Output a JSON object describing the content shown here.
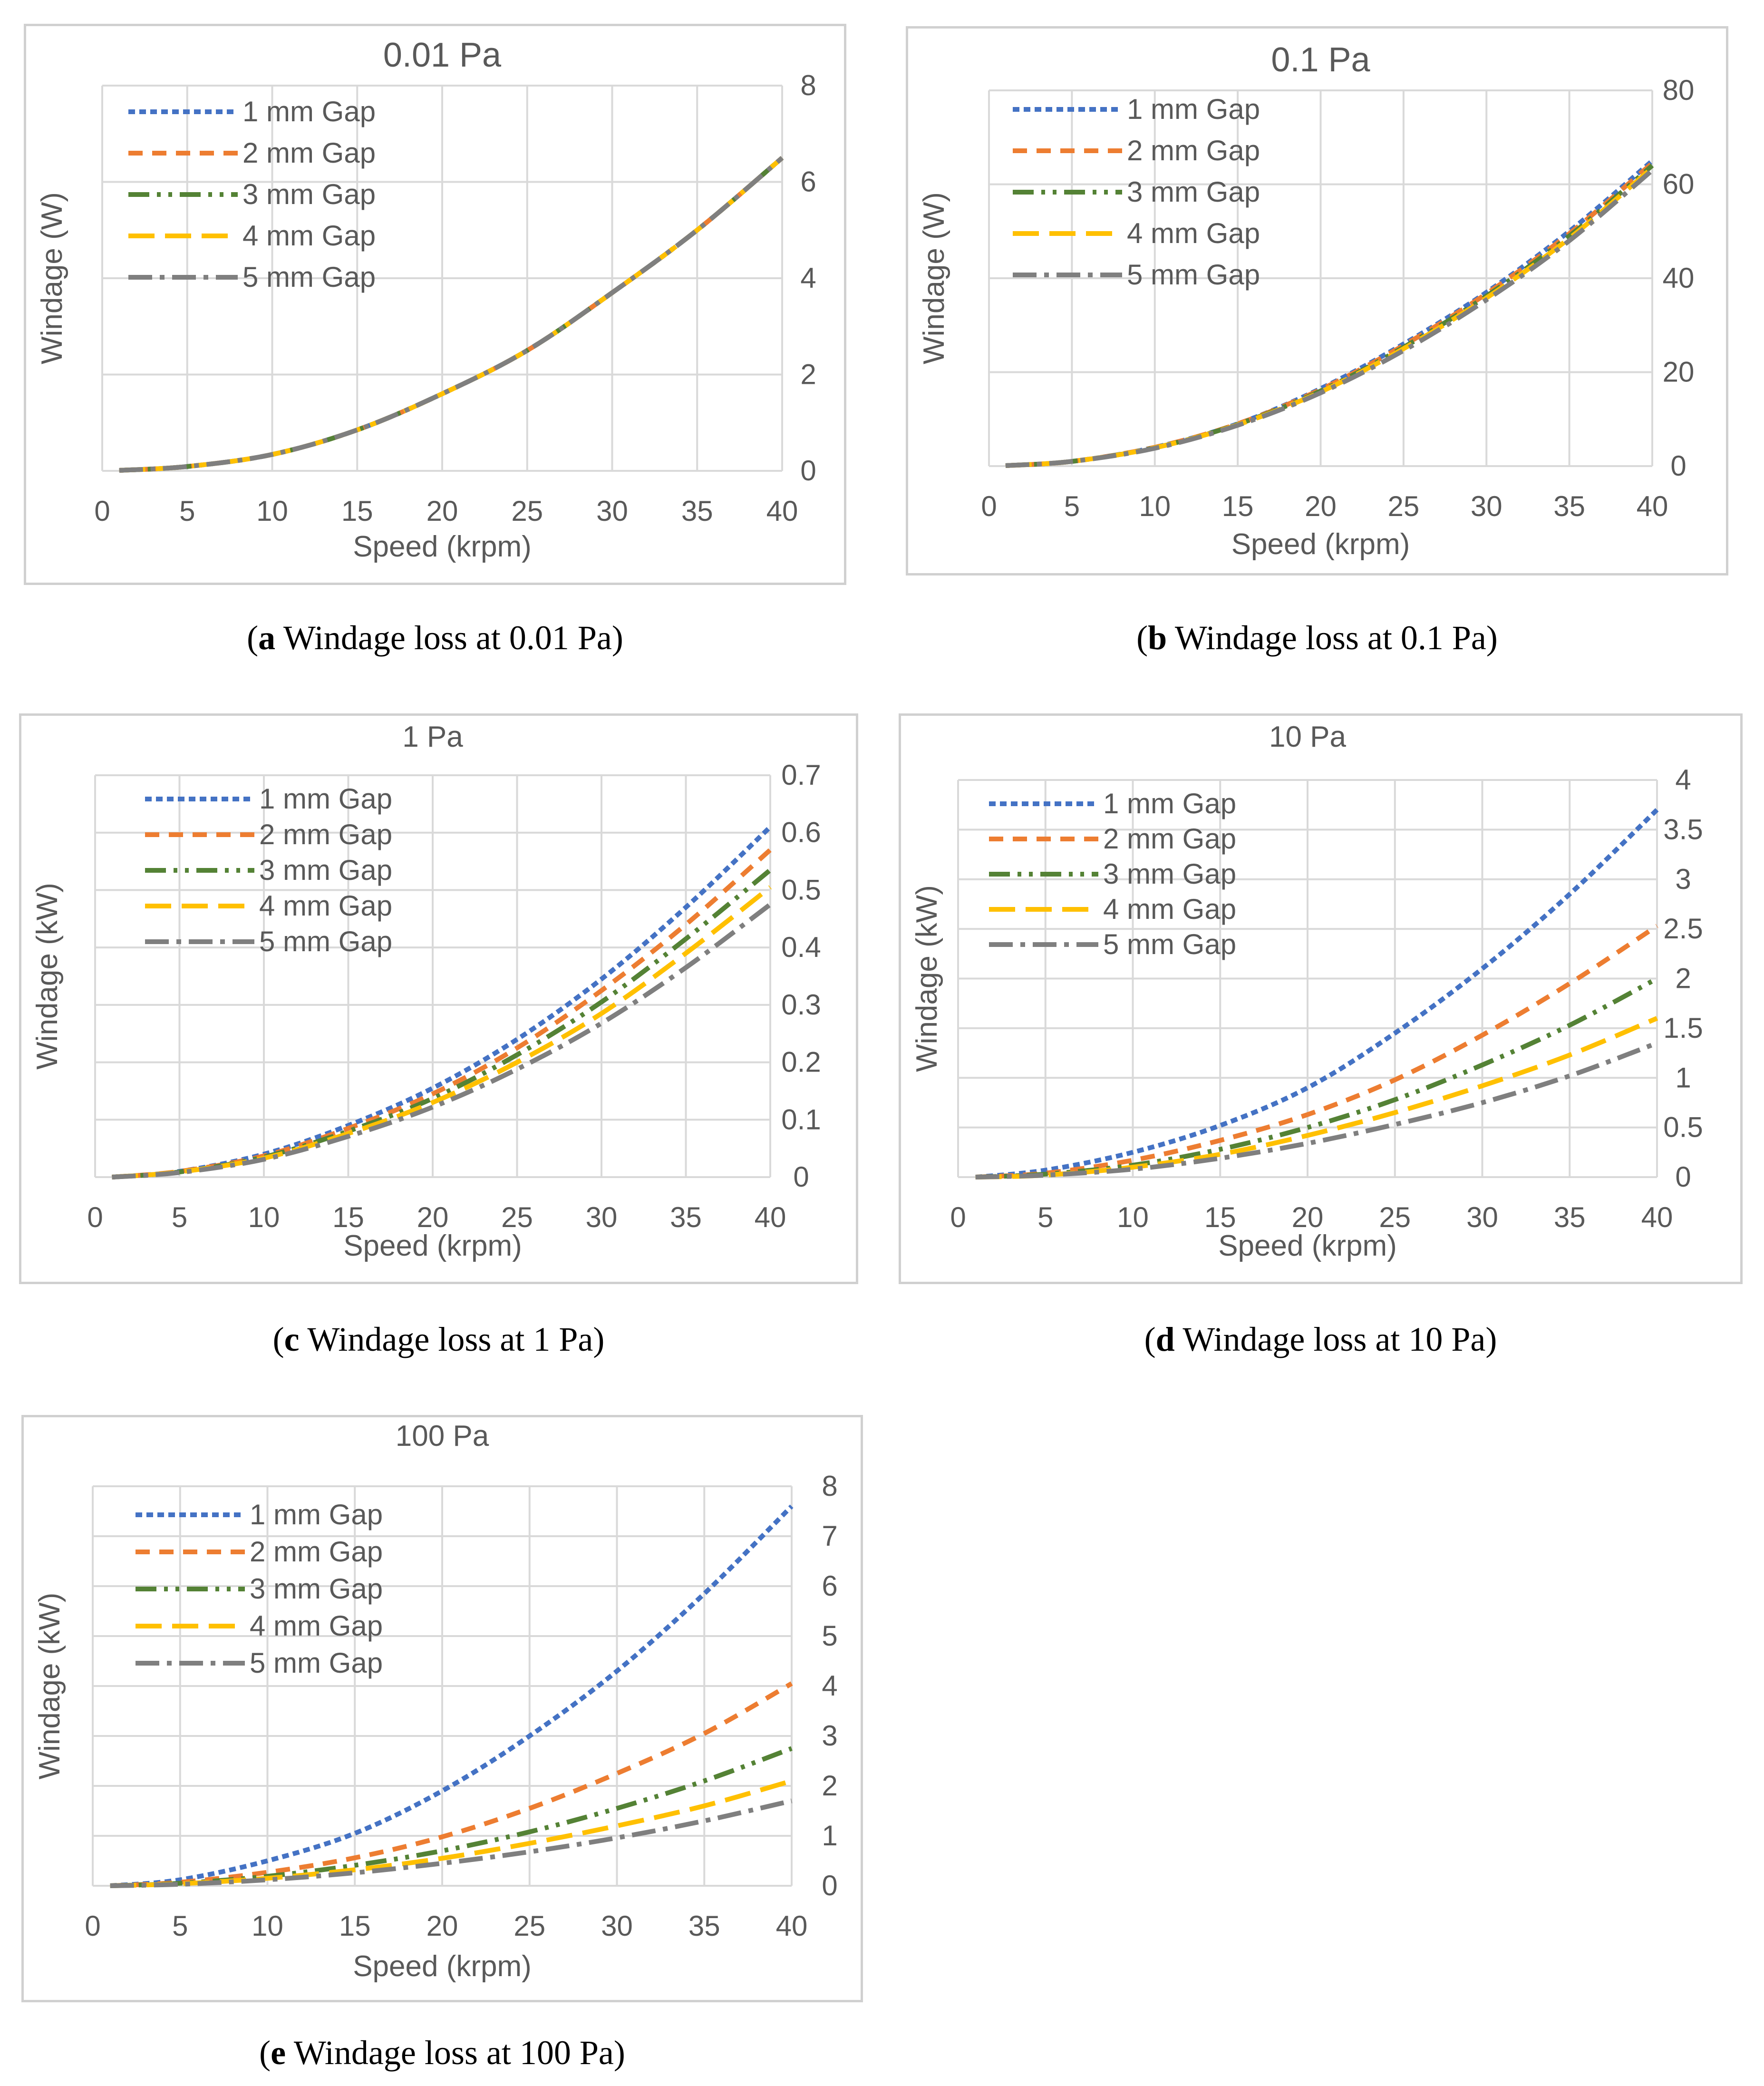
{
  "colors": {
    "gap1": "#4472c4",
    "gap2": "#ed7d31",
    "gap3": "#548235",
    "gap4": "#ffc000",
    "gap5": "#7f7f7f",
    "grid": "#d9d9d9",
    "text": "#595959"
  },
  "captions": [
    {
      "letter": "a",
      "text": " Windage loss at 0.01 Pa"
    },
    {
      "letter": "b",
      "text": " Windage loss at 0.1 Pa"
    },
    {
      "letter": "c",
      "text": " Windage loss at 1 Pa"
    },
    {
      "letter": "d",
      "text": " Windage loss at 10 Pa"
    },
    {
      "letter": "e",
      "text": " Windage loss at 100 Pa"
    }
  ],
  "chart_data": [
    {
      "type": "line",
      "title": "0.01 Pa",
      "xlabel": "Speed (krpm)",
      "ylabel": "Windage (W)",
      "xlim": [
        0,
        40
      ],
      "ylim": [
        0,
        8
      ],
      "xticks": [
        "0",
        "5",
        "10",
        "15",
        "20",
        "25",
        "30",
        "35",
        "40"
      ],
      "yticks": [
        "0",
        "2",
        "4",
        "6",
        "8"
      ],
      "grid": true,
      "legend": "top-left",
      "x": [
        1,
        5,
        10,
        15,
        20,
        25,
        30,
        35,
        40
      ],
      "series": [
        {
          "name": "1 mm Gap",
          "values": [
            0.01,
            0.09,
            0.34,
            0.85,
            1.6,
            2.5,
            3.7,
            5.0,
            6.5
          ]
        },
        {
          "name": "2 mm Gap",
          "values": [
            0.01,
            0.09,
            0.34,
            0.85,
            1.6,
            2.5,
            3.7,
            5.0,
            6.5
          ]
        },
        {
          "name": "3 mm Gap",
          "values": [
            0.01,
            0.09,
            0.34,
            0.85,
            1.6,
            2.5,
            3.7,
            5.0,
            6.5
          ]
        },
        {
          "name": "4 mm Gap",
          "values": [
            0.01,
            0.09,
            0.34,
            0.85,
            1.6,
            2.5,
            3.7,
            5.0,
            6.5
          ]
        },
        {
          "name": "5 mm Gap",
          "values": [
            0.01,
            0.09,
            0.34,
            0.85,
            1.6,
            2.5,
            3.7,
            5.0,
            6.5
          ]
        }
      ]
    },
    {
      "type": "line",
      "title": "0.1 Pa",
      "xlabel": "Speed (krpm)",
      "ylabel": "Windage (W)",
      "xlim": [
        0,
        40
      ],
      "ylim": [
        0,
        80
      ],
      "xticks": [
        "0",
        "5",
        "10",
        "15",
        "20",
        "25",
        "30",
        "35",
        "40"
      ],
      "yticks": [
        "0",
        "20",
        "40",
        "60",
        "80"
      ],
      "grid": true,
      "legend": "top-left",
      "x": [
        1,
        5,
        10,
        15,
        20,
        25,
        30,
        35,
        40
      ],
      "series": [
        {
          "name": "1 mm Gap",
          "values": [
            0.1,
            1.0,
            4.0,
            9.0,
            16.5,
            26.0,
            37.0,
            50.0,
            65.0
          ]
        },
        {
          "name": "2 mm Gap",
          "values": [
            0.1,
            1.0,
            4.0,
            9.0,
            16.3,
            25.7,
            36.7,
            49.5,
            64.5
          ]
        },
        {
          "name": "3 mm Gap",
          "values": [
            0.1,
            1.0,
            3.9,
            8.9,
            16.0,
            25.3,
            36.2,
            49.0,
            64.0
          ]
        },
        {
          "name": "4 mm Gap",
          "values": [
            0.1,
            1.0,
            3.9,
            8.8,
            15.8,
            25.0,
            35.8,
            48.5,
            63.5
          ]
        },
        {
          "name": "5 mm Gap",
          "values": [
            0.1,
            1.0,
            3.8,
            8.7,
            15.6,
            24.6,
            35.4,
            48.0,
            63.0
          ]
        }
      ]
    },
    {
      "type": "line",
      "title": "1 Pa",
      "xlabel": "Speed (krpm)",
      "ylabel": "Windage (kW)",
      "xlim": [
        0,
        40
      ],
      "ylim": [
        0,
        0.7
      ],
      "xticks": [
        "0",
        "5",
        "10",
        "15",
        "20",
        "25",
        "30",
        "35",
        "40"
      ],
      "yticks": [
        "0",
        "0.1",
        "0.2",
        "0.3",
        "0.4",
        "0.5",
        "0.6",
        "0.7"
      ],
      "grid": true,
      "legend": "top-left",
      "x": [
        1,
        5,
        10,
        15,
        20,
        25,
        30,
        35,
        40
      ],
      "series": [
        {
          "name": "1 mm Gap",
          "values": [
            0.0,
            0.01,
            0.04,
            0.09,
            0.155,
            0.24,
            0.345,
            0.47,
            0.61
          ]
        },
        {
          "name": "2 mm Gap",
          "values": [
            0.0,
            0.01,
            0.037,
            0.085,
            0.145,
            0.225,
            0.325,
            0.44,
            0.57
          ]
        },
        {
          "name": "3 mm Gap",
          "values": [
            0.0,
            0.009,
            0.035,
            0.08,
            0.137,
            0.213,
            0.305,
            0.415,
            0.535
          ]
        },
        {
          "name": "4 mm Gap",
          "values": [
            0.0,
            0.009,
            0.033,
            0.076,
            0.13,
            0.2,
            0.285,
            0.39,
            0.505
          ]
        },
        {
          "name": "5 mm Gap",
          "values": [
            0.0,
            0.008,
            0.031,
            0.071,
            0.122,
            0.188,
            0.268,
            0.365,
            0.475
          ]
        }
      ]
    },
    {
      "type": "line",
      "title": "10 Pa",
      "xlabel": "Speed (krpm)",
      "ylabel": "Windage (kW)",
      "xlim": [
        0,
        40
      ],
      "ylim": [
        0,
        4
      ],
      "xticks": [
        "0",
        "5",
        "10",
        "15",
        "20",
        "25",
        "30",
        "35",
        "40"
      ],
      "yticks": [
        "0",
        "0.5",
        "1",
        "1.5",
        "2",
        "2.5",
        "3",
        "3.5",
        "4"
      ],
      "grid": true,
      "legend": "top-left",
      "x": [
        1,
        5,
        10,
        15,
        20,
        25,
        30,
        35,
        40
      ],
      "series": [
        {
          "name": "1 mm Gap",
          "values": [
            0.0,
            0.07,
            0.25,
            0.52,
            0.9,
            1.45,
            2.1,
            2.85,
            3.7
          ]
        },
        {
          "name": "2 mm Gap",
          "values": [
            0.0,
            0.04,
            0.17,
            0.37,
            0.63,
            0.98,
            1.43,
            1.95,
            2.53
          ]
        },
        {
          "name": "3 mm Gap",
          "values": [
            0.0,
            0.03,
            0.12,
            0.28,
            0.5,
            0.78,
            1.13,
            1.53,
            2.0
          ]
        },
        {
          "name": "4 mm Gap",
          "values": [
            0.0,
            0.02,
            0.1,
            0.23,
            0.42,
            0.65,
            0.92,
            1.23,
            1.6
          ]
        },
        {
          "name": "5 mm Gap",
          "values": [
            0.0,
            0.02,
            0.08,
            0.19,
            0.34,
            0.53,
            0.75,
            1.02,
            1.35
          ]
        }
      ]
    },
    {
      "type": "line",
      "title": "100 Pa",
      "xlabel": "Speed (krpm)",
      "ylabel": "Windage (kW)",
      "xlim": [
        0,
        40
      ],
      "ylim": [
        0,
        8
      ],
      "xticks": [
        "0",
        "5",
        "10",
        "15",
        "20",
        "25",
        "30",
        "35",
        "40"
      ],
      "yticks": [
        "0",
        "1",
        "2",
        "3",
        "4",
        "5",
        "6",
        "7",
        "8"
      ],
      "grid": true,
      "legend": "top-left",
      "x": [
        1,
        5,
        10,
        15,
        20,
        25,
        30,
        35,
        40
      ],
      "series": [
        {
          "name": "1 mm Gap",
          "values": [
            0.0,
            0.12,
            0.5,
            1.05,
            1.9,
            3.0,
            4.3,
            5.85,
            7.6
          ]
        },
        {
          "name": "2 mm Gap",
          "values": [
            0.0,
            0.07,
            0.27,
            0.56,
            0.98,
            1.55,
            2.25,
            3.05,
            4.05
          ]
        },
        {
          "name": "3 mm Gap",
          "values": [
            0.0,
            0.05,
            0.19,
            0.41,
            0.7,
            1.08,
            1.55,
            2.1,
            2.75
          ]
        },
        {
          "name": "4 mm Gap",
          "values": [
            0.0,
            0.04,
            0.15,
            0.32,
            0.55,
            0.85,
            1.2,
            1.6,
            2.1
          ]
        },
        {
          "name": "5 mm Gap",
          "values": [
            0.0,
            0.03,
            0.12,
            0.26,
            0.45,
            0.68,
            0.96,
            1.3,
            1.7
          ]
        }
      ]
    }
  ]
}
